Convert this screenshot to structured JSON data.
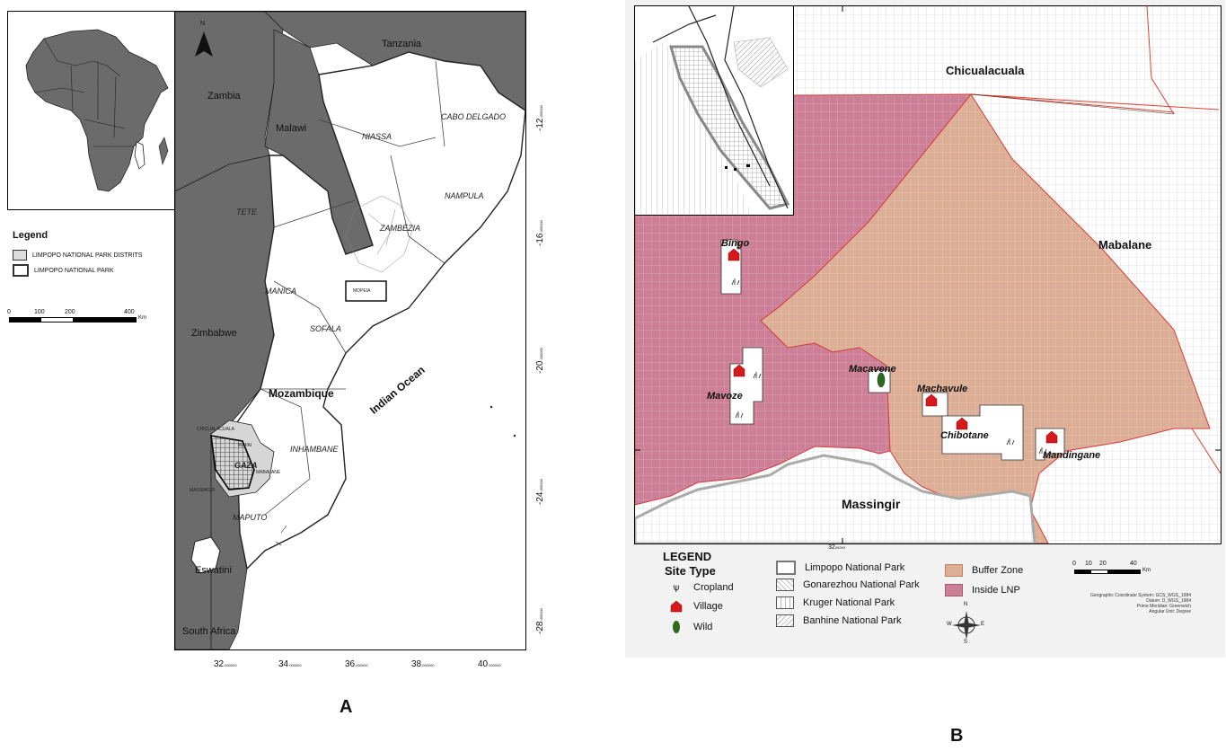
{
  "panel_a": {
    "caption": "A",
    "north_label": "N",
    "countries": {
      "tanzania": "Tanzania",
      "zambia": "Zambia",
      "malawi": "Malawi",
      "zimbabwe": "Zimbabwe",
      "mozambique": "Mozambique",
      "eswatini": "Eswatini",
      "south_africa": "South Africa",
      "indian_ocean": "Indian Ocean"
    },
    "provinces": {
      "niassa": "NIASSA",
      "cabo_delgado": "CABO DELGADO",
      "nampula": "NAMPULA",
      "zambezia": "ZAMBÉZIA",
      "tete": "TETE",
      "manica": "MANICA",
      "sofala": "SOFALA",
      "inhambane": "INHAMBANE",
      "gaza": "GAZA",
      "maputo": "MAPUTO"
    },
    "small_labels": {
      "mopeia": "MOPEIA",
      "chicualacuala": "CHICUALACUALA",
      "mapai": "MAPAI",
      "mabalane": "MABALANE",
      "massingir": "MASSINGIR"
    },
    "y_ticks": [
      {
        "deg": "-12",
        "suffix": ".000000"
      },
      {
        "deg": "-16",
        "suffix": ".000000"
      },
      {
        "deg": "-20",
        "suffix": ".000000"
      },
      {
        "deg": "-24",
        "suffix": ".000000"
      },
      {
        "deg": "-28",
        "suffix": ".000000"
      }
    ],
    "x_ticks": [
      {
        "deg": "32",
        "suffix": ".000000"
      },
      {
        "deg": "34",
        "suffix": ".000000"
      },
      {
        "deg": "36",
        "suffix": ".000000"
      },
      {
        "deg": "38",
        "suffix": ".000000"
      },
      {
        "deg": "40",
        "suffix": ".000000"
      }
    ],
    "legend": {
      "title": "Legend",
      "items": [
        "LIMPOPO NATIONAL PARK DISTRITS",
        "LIMPOPO NATIONAL PARK"
      ]
    },
    "scale": {
      "labels": [
        "0",
        "100",
        "200",
        "400"
      ],
      "unit": "Km"
    }
  },
  "panel_b": {
    "caption": "B",
    "regions": {
      "chicualacuala": "Chicualacuala",
      "mabalane": "Mabalane",
      "massingir": "Massingir"
    },
    "sites": {
      "bingo": "Bingo",
      "mavoze": "Mavoze",
      "macavene": "Macavene",
      "machavule": "Machavule",
      "chibotane": "Chibotane",
      "mandingane": "Mandingane"
    },
    "x_tick": {
      "deg": "32",
      "suffix": "00000"
    },
    "legend": {
      "title": "LEGEND",
      "site_type_title": "Site Type",
      "site_types": [
        "Cropland",
        "Village",
        "Wild"
      ],
      "parks": [
        "Limpopo National Park",
        "Gonarezhou  National Park",
        "Kruger National Park",
        "Banhine National Park"
      ],
      "zones": [
        "Buffer Zone",
        "Inside LNP"
      ]
    },
    "scale": {
      "labels": [
        "0",
        "10",
        "20",
        "40"
      ],
      "unit": "Km"
    },
    "metadata": [
      "Geographic Coordinate System:   GCS_WGS_1984",
      "Datum:      D_WGS_1984",
      "Prime Meridian:    Greenwich",
      "Angular Unit:    Degree"
    ],
    "compass": {
      "n": "N",
      "s": "S",
      "e": "E",
      "w": "W"
    },
    "colors": {
      "buffer_zone": "#dcae96",
      "inside_lnp": "#cc7f96",
      "boundary_red": "#e04030",
      "village_red": "#d8191c",
      "wild_green": "#2d6a1a"
    }
  }
}
